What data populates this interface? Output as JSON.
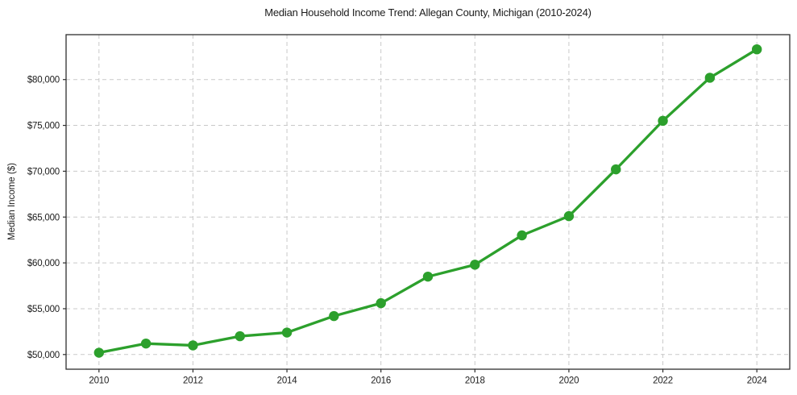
{
  "chart_data": {
    "type": "line",
    "title": "Median Household Income Trend: Allegan County, Michigan (2010-2024)",
    "xlabel": "",
    "ylabel": "Median Income ($)",
    "x": [
      2010,
      2011,
      2012,
      2013,
      2014,
      2015,
      2016,
      2017,
      2018,
      2019,
      2020,
      2021,
      2022,
      2023,
      2024
    ],
    "values": [
      50200,
      51200,
      51000,
      52000,
      52400,
      54200,
      55600,
      58500,
      59800,
      63000,
      65100,
      70200,
      75500,
      80200,
      83300
    ],
    "series_name": "Median household income",
    "xlim": [
      2009.3,
      2024.7
    ],
    "ylim": [
      48400,
      84900
    ],
    "x_ticks": [
      2010,
      2012,
      2014,
      2016,
      2018,
      2020,
      2022,
      2024
    ],
    "y_ticks": [
      50000,
      55000,
      60000,
      65000,
      70000,
      75000,
      80000
    ],
    "y_tick_labels": [
      "$50,000",
      "$55,000",
      "$60,000",
      "$65,000",
      "$70,000",
      "$75,000",
      "$80,000"
    ],
    "grid": true,
    "grid_style": "dashed",
    "legend": false,
    "line_color": "#2ca02c",
    "marker": "circle",
    "marker_color": "#2ca02c",
    "background_color": "#ffffff"
  }
}
